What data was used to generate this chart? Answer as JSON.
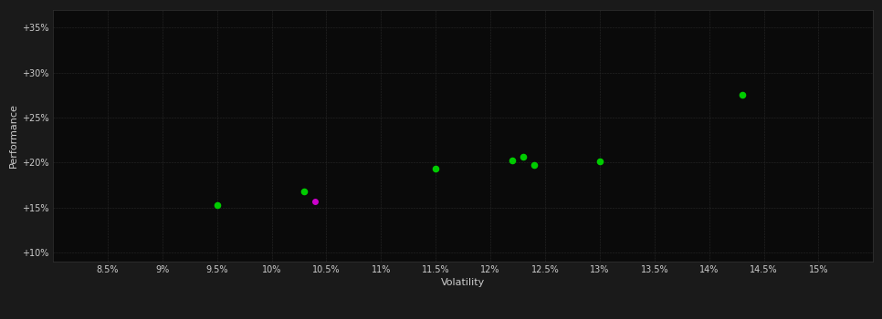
{
  "background_color": "#1a1a1a",
  "plot_bg_color": "#0a0a0a",
  "grid_color": "#2a2a2a",
  "text_color": "#cccccc",
  "xlabel": "Volatility",
  "ylabel": "Performance",
  "xlim": [
    0.08,
    0.155
  ],
  "ylim": [
    0.09,
    0.37
  ],
  "xticks": [
    0.085,
    0.09,
    0.095,
    0.1,
    0.105,
    0.11,
    0.115,
    0.12,
    0.125,
    0.13,
    0.135,
    0.14,
    0.145,
    0.15
  ],
  "yticks": [
    0.1,
    0.15,
    0.2,
    0.25,
    0.3,
    0.35
  ],
  "points_green": [
    [
      0.095,
      0.153
    ],
    [
      0.103,
      0.168
    ],
    [
      0.115,
      0.193
    ],
    [
      0.122,
      0.202
    ],
    [
      0.123,
      0.206
    ],
    [
      0.124,
      0.197
    ],
    [
      0.13,
      0.201
    ],
    [
      0.143,
      0.275
    ]
  ],
  "points_magenta": [
    [
      0.104,
      0.157
    ]
  ],
  "point_size_green": 20,
  "point_size_magenta": 16,
  "green_color": "#00cc00",
  "magenta_color": "#cc00cc"
}
